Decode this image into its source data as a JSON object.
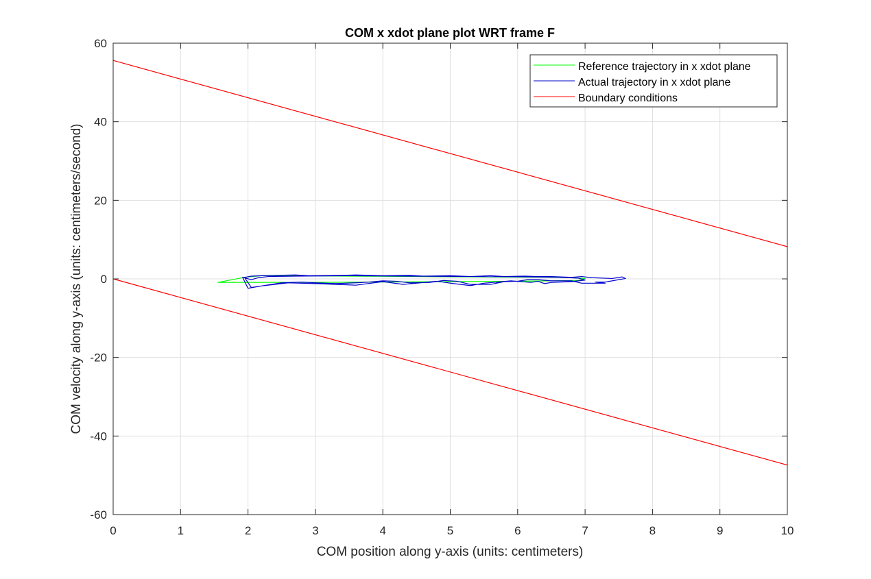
{
  "chart_data": {
    "type": "line",
    "title": "COM x xdot plane plot WRT frame F",
    "xlabel": "COM position along y-axis (units: centimeters)",
    "ylabel": "COM velocity along y-axis (units: centimeters/second)",
    "xlim": [
      0,
      10
    ],
    "ylim": [
      -60,
      60
    ],
    "xticks": [
      0,
      1,
      2,
      3,
      4,
      5,
      6,
      7,
      8,
      9,
      10
    ],
    "yticks": [
      -60,
      -40,
      -20,
      0,
      20,
      40,
      60
    ],
    "grid": true,
    "legend_position": "top-right",
    "series": [
      {
        "name": "Reference trajectory in x xdot plane",
        "color": "#00ff00",
        "x": [
          1.55,
          1.95,
          2.2,
          2.6,
          3.5,
          4.5,
          5.5,
          6.4,
          6.8,
          7.0,
          6.9,
          6.0,
          5.0,
          4.0,
          3.0,
          2.1,
          1.55
        ],
        "y": [
          -0.9,
          0.4,
          0.8,
          0.8,
          0.7,
          0.6,
          0.5,
          0.4,
          0.3,
          0.1,
          -0.4,
          -0.6,
          -0.7,
          -0.8,
          -0.9,
          -0.9,
          -0.9
        ]
      },
      {
        "name": "Actual trajectory in x xdot plane",
        "color": "#0000cc",
        "x": [
          1.92,
          2.05,
          2.2,
          2.7,
          2.9,
          3.4,
          3.6,
          4.0,
          4.4,
          4.6,
          5.0,
          5.3,
          5.6,
          5.8,
          6.1,
          6.3,
          6.5,
          6.8,
          6.95,
          7.1,
          7.4,
          7.55,
          7.6,
          7.3,
          7.15,
          7.3,
          6.95,
          6.8,
          6.5,
          6.3,
          6.15,
          6.0,
          5.8,
          5.6,
          5.3,
          5.1,
          4.9,
          4.7,
          4.4,
          4.2,
          4.0,
          3.8,
          3.6,
          3.3,
          3.0,
          2.8,
          2.5,
          2.2,
          2.0,
          1.92,
          2.05,
          2.15,
          2.3,
          2.7,
          3.5,
          4.4,
          5.3,
          6.2,
          6.6,
          6.9,
          7.0,
          6.8,
          6.5,
          6.4,
          6.3,
          6.2,
          5.9,
          5.5,
          5.3,
          5.05,
          4.8,
          4.5,
          4.3,
          4.0,
          3.6,
          3.0,
          2.6,
          2.2,
          2.05,
          1.95
        ],
        "y": [
          0.3,
          0.7,
          0.8,
          1.0,
          0.8,
          0.9,
          1.0,
          0.8,
          0.9,
          0.7,
          0.8,
          0.6,
          0.8,
          0.6,
          0.7,
          0.6,
          0.6,
          0.4,
          0.6,
          0.3,
          0.1,
          0.5,
          0.1,
          -0.8,
          -0.8,
          -1.1,
          -1.1,
          -0.5,
          -0.5,
          -0.2,
          -0.2,
          -0.6,
          -0.7,
          -1.4,
          -1.4,
          -0.6,
          -0.4,
          -0.9,
          -1.0,
          -0.6,
          -0.5,
          -0.8,
          -1.0,
          -1.2,
          -1.0,
          -0.8,
          -1.0,
          -1.8,
          -2.4,
          0.4,
          -0.2,
          0.3,
          0.6,
          0.7,
          0.8,
          0.7,
          0.6,
          0.5,
          0.4,
          0.2,
          -0.3,
          -0.7,
          -0.9,
          -1.2,
          -0.6,
          -0.9,
          -0.5,
          -1.1,
          -1.7,
          -1.2,
          -0.6,
          -1.1,
          -1.4,
          -0.7,
          -1.6,
          -1.2,
          -1.0,
          -1.8,
          -2.2,
          0.3
        ]
      },
      {
        "name": "Boundary conditions",
        "color": "#ff0000",
        "x": [
          0,
          10
        ],
        "y": [
          55.6,
          8.2
        ]
      },
      {
        "name": "Boundary conditions (lower)",
        "color": "#ff0000",
        "x": [
          0,
          10
        ],
        "y": [
          0,
          -47.4
        ],
        "legend": false
      }
    ],
    "legend_entries": [
      "Reference trajectory in x xdot plane",
      "Actual trajectory in x xdot plane",
      "Boundary conditions"
    ]
  }
}
